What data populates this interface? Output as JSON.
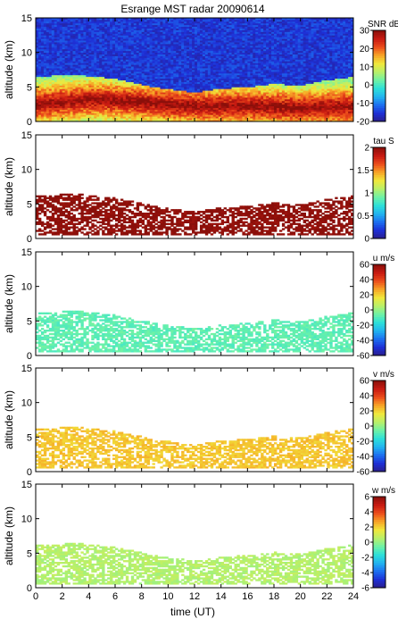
{
  "figure": {
    "title": "Esrange MST radar 20090614",
    "xlabel": "time (UT)"
  },
  "colormap": [
    "#2a1e8a",
    "#1e2fd6",
    "#1d6ff0",
    "#22b4f0",
    "#2de0d9",
    "#6ef2a6",
    "#b8f06a",
    "#f0e83c",
    "#f7a526",
    "#ec4d1b",
    "#c81a12",
    "#8a0f0a"
  ],
  "chart_data": [
    {
      "type": "heatmap",
      "panel": "snr",
      "ylabel": "altitude (km)",
      "colorbar_label": "SNR dB",
      "xlim": [
        0,
        24
      ],
      "ylim": [
        0,
        15
      ],
      "x_ticks": [
        0,
        2,
        4,
        6,
        8,
        10,
        12,
        14,
        16,
        18,
        20,
        22,
        24
      ],
      "y_ticks": [
        0,
        5,
        10,
        15
      ],
      "clim": [
        -20,
        30
      ],
      "colorbar_ticks": [
        30,
        20,
        10,
        0,
        -10,
        -20
      ],
      "cloud_top_km": [
        [
          0,
          6.5
        ],
        [
          3,
          6.8
        ],
        [
          6,
          6.2
        ],
        [
          9,
          5.0
        ],
        [
          12,
          4.2
        ],
        [
          14,
          4.8
        ],
        [
          16,
          5.0
        ],
        [
          18,
          5.5
        ],
        [
          20,
          5.2
        ],
        [
          22,
          6.0
        ],
        [
          24,
          6.5
        ]
      ],
      "peak_layer_km": [
        [
          0,
          2.5
        ],
        [
          4,
          3.2
        ],
        [
          7,
          3.0
        ],
        [
          10,
          2.5
        ],
        [
          13,
          2.2
        ],
        [
          16,
          2.3
        ],
        [
          20,
          2.0
        ],
        [
          24,
          2.2
        ]
      ],
      "background_db": -15,
      "peak_db": 30
    },
    {
      "type": "heatmap",
      "panel": "tau",
      "ylabel": "altitude (km)",
      "colorbar_label": "tau S",
      "xlim": [
        0,
        24
      ],
      "ylim": [
        0,
        15
      ],
      "x_ticks": [
        0,
        2,
        4,
        6,
        8,
        10,
        12,
        14,
        16,
        18,
        20,
        22,
        24
      ],
      "y_ticks": [
        0,
        5,
        10,
        15
      ],
      "clim": [
        0,
        2
      ],
      "colorbar_ticks": [
        2,
        1.5,
        1,
        0.5,
        0
      ],
      "typical_value": 2.0
    },
    {
      "type": "heatmap",
      "panel": "u",
      "ylabel": "altitude (km)",
      "colorbar_label": "u m/s",
      "xlim": [
        0,
        24
      ],
      "ylim": [
        0,
        15
      ],
      "x_ticks": [
        0,
        2,
        4,
        6,
        8,
        10,
        12,
        14,
        16,
        18,
        20,
        22,
        24
      ],
      "y_ticks": [
        0,
        5,
        10,
        15
      ],
      "clim": [
        -60,
        60
      ],
      "colorbar_ticks": [
        60,
        40,
        20,
        0,
        -20,
        -40,
        -60
      ],
      "typical_value": -8
    },
    {
      "type": "heatmap",
      "panel": "v",
      "ylabel": "altitude (km)",
      "colorbar_label": "v m/s",
      "xlim": [
        0,
        24
      ],
      "ylim": [
        0,
        15
      ],
      "x_ticks": [
        0,
        2,
        4,
        6,
        8,
        10,
        12,
        14,
        16,
        18,
        20,
        22,
        24
      ],
      "y_ticks": [
        0,
        5,
        10,
        15
      ],
      "clim": [
        -60,
        60
      ],
      "colorbar_ticks": [
        60,
        40,
        20,
        0,
        -20,
        -40,
        -60
      ],
      "typical_value": 22
    },
    {
      "type": "heatmap",
      "panel": "w",
      "ylabel": "altitude (km)",
      "colorbar_label": "w m/s",
      "xlim": [
        0,
        24
      ],
      "ylim": [
        0,
        15
      ],
      "x_ticks": [
        0,
        2,
        4,
        6,
        8,
        10,
        12,
        14,
        16,
        18,
        20,
        22,
        24
      ],
      "y_ticks": [
        0,
        5,
        10,
        15
      ],
      "clim": [
        -6,
        6
      ],
      "colorbar_ticks": [
        6,
        4,
        2,
        0,
        -2,
        -4,
        -6
      ],
      "typical_value": 0.5
    }
  ]
}
